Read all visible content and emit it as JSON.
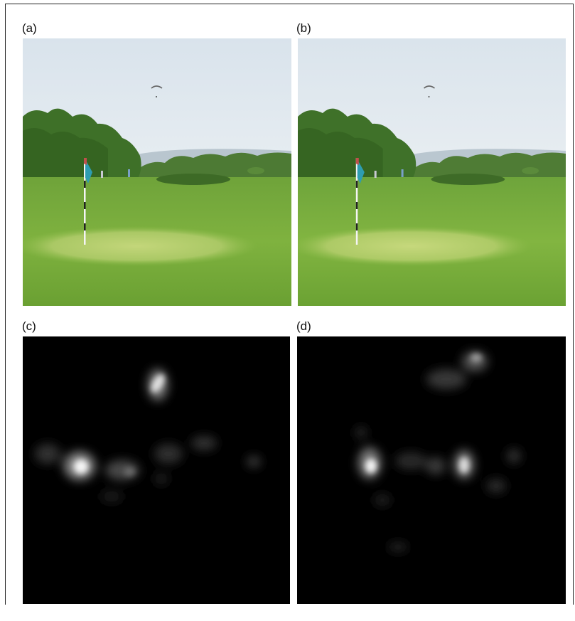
{
  "figure": {
    "panels": [
      {
        "id": "a",
        "label": "(a)",
        "content": "golf-course-photo"
      },
      {
        "id": "b",
        "label": "(b)",
        "content": "golf-course-photo"
      },
      {
        "id": "c",
        "label": "(c)",
        "content": "fixation-heatmap"
      },
      {
        "id": "d",
        "label": "(d)",
        "content": "fixation-heatmap"
      }
    ]
  }
}
